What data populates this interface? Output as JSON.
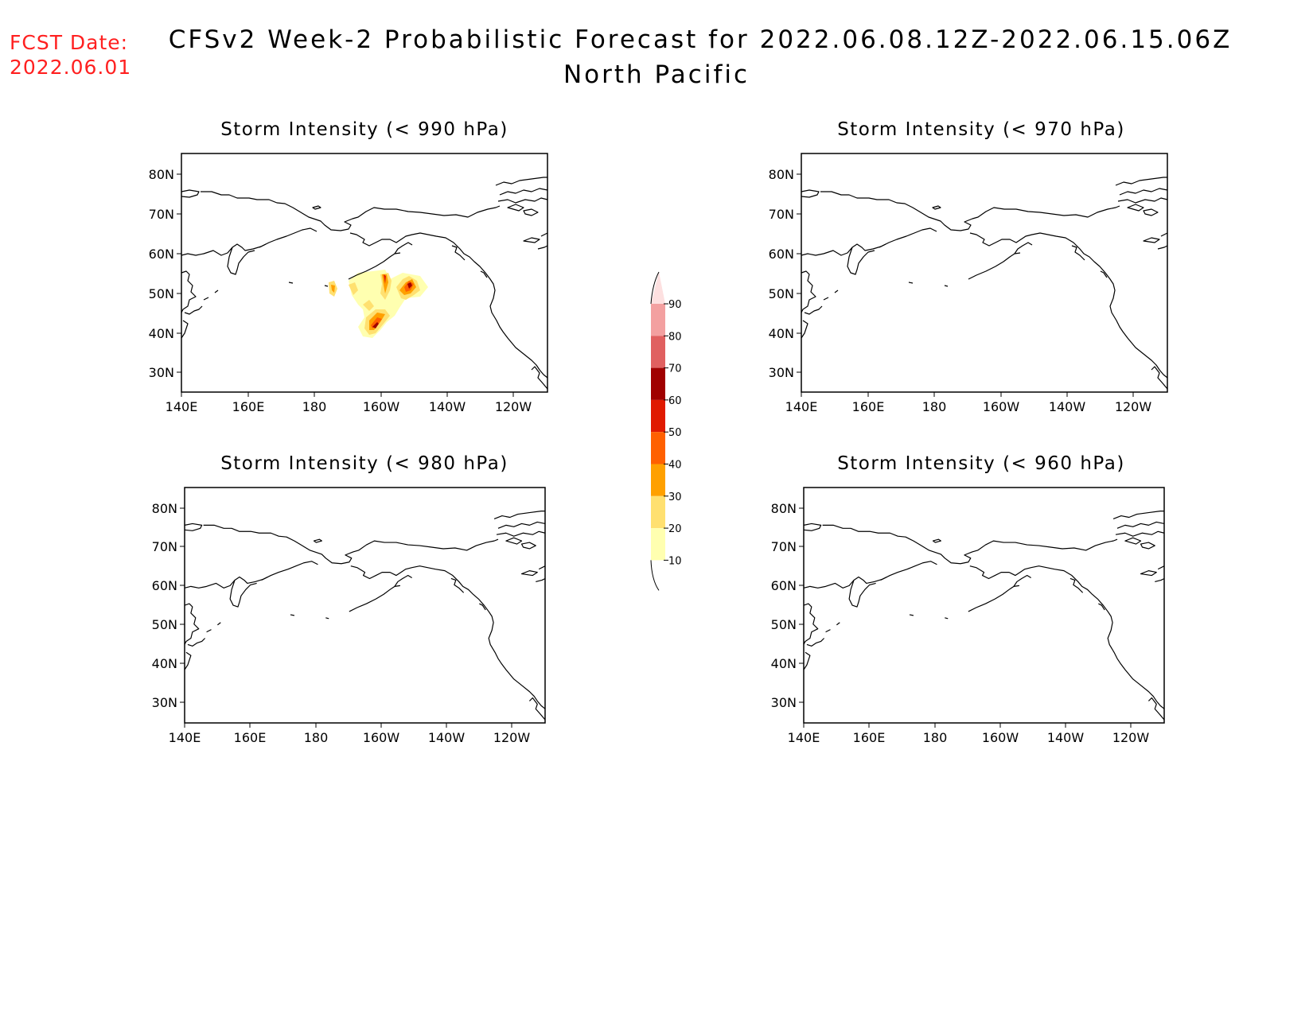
{
  "fcst_date": {
    "label": "FCST Date:",
    "value": "2022.06.01"
  },
  "title": {
    "line1": "CFSv2 Week-2 Probabilistic Forecast for 2022.06.08.12Z-2022.06.15.06Z",
    "line2": "North Pacific"
  },
  "panels": [
    {
      "title": "Storm Intensity (< 990 hPa)"
    },
    {
      "title": "Storm Intensity (< 970 hPa)"
    },
    {
      "title": "Storm Intensity (< 980 hPa)"
    },
    {
      "title": "Storm Intensity (< 960 hPa)"
    }
  ],
  "axes": {
    "lat_labels": [
      "80N",
      "70N",
      "60N",
      "50N",
      "40N",
      "30N"
    ],
    "lon_labels": [
      "140E",
      "160E",
      "180",
      "160W",
      "140W",
      "120W"
    ]
  },
  "colorbar": {
    "labels": [
      "90",
      "80",
      "70",
      "60",
      "50",
      "40",
      "30",
      "20",
      "10"
    ],
    "colors": [
      "#fde0e0",
      "#f3a0a0",
      "#e06060",
      "#a00000",
      "#e01a00",
      "#ff6000",
      "#ffa000",
      "#ffe070",
      "#ffffb0"
    ]
  }
}
